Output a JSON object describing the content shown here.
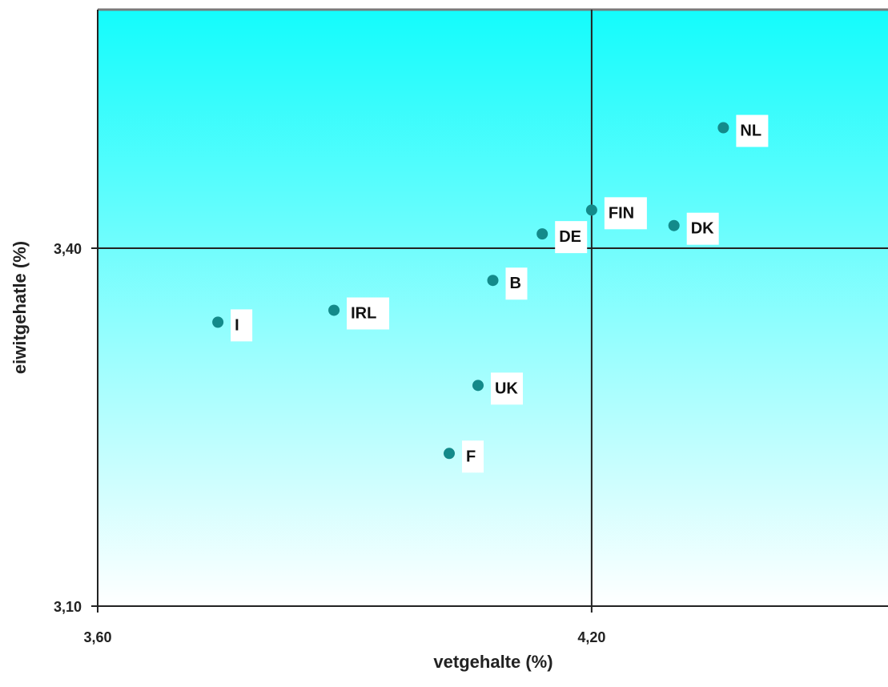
{
  "chart_data": {
    "type": "scatter",
    "title": "",
    "xlabel": "vetgehalte (%)",
    "ylabel": "eiwitgehatle (%)",
    "xlim": [
      3.6,
      4.56
    ],
    "ylim": [
      3.1,
      3.6
    ],
    "x_ticks": [
      {
        "value": 3.6,
        "label": "3,60"
      },
      {
        "value": 4.2,
        "label": "4,20"
      }
    ],
    "y_ticks": [
      {
        "value": 3.1,
        "label": "3,10"
      },
      {
        "value": 3.4,
        "label": "3,40"
      }
    ],
    "reference_lines": {
      "x": 4.2,
      "y": 3.4
    },
    "background_gradient": {
      "top": "#13fcfc",
      "bottom": "#ffffff"
    },
    "marker_color": "#138a8a",
    "grid": false,
    "legend": "none",
    "points": [
      {
        "label": "NL",
        "x": 4.36,
        "y": 3.501
      },
      {
        "label": "FIN",
        "x": 4.2,
        "y": 3.432
      },
      {
        "label": "DK",
        "x": 4.3,
        "y": 3.419
      },
      {
        "label": "DE",
        "x": 4.14,
        "y": 3.412
      },
      {
        "label": "B",
        "x": 4.08,
        "y": 3.373
      },
      {
        "label": "IRL",
        "x": 3.887,
        "y": 3.348
      },
      {
        "label": "I",
        "x": 3.746,
        "y": 3.338
      },
      {
        "label": "UK",
        "x": 4.062,
        "y": 3.285
      },
      {
        "label": "F",
        "x": 4.027,
        "y": 3.228
      }
    ]
  }
}
